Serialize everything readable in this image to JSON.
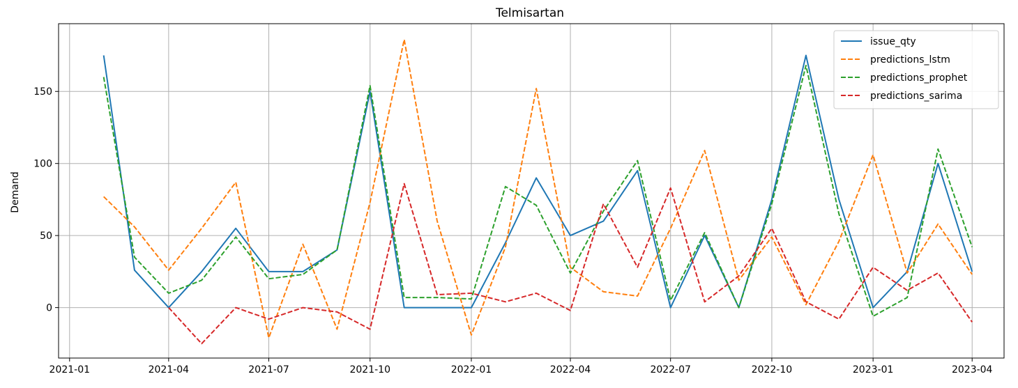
{
  "chart_data": {
    "type": "line",
    "title": "Telmisartan",
    "xlabel": "",
    "ylabel": "Demand",
    "grid": true,
    "legend_position": "top-right",
    "x_tick_labels": [
      "2021-01",
      "2021-04",
      "2021-07",
      "2021-10",
      "2022-01",
      "2022-04",
      "2022-07",
      "2022-10",
      "2023-01",
      "2023-04"
    ],
    "y_tick_labels": [
      "0",
      "50",
      "100",
      "150"
    ],
    "y_ticks": [
      0,
      50,
      100,
      150
    ],
    "x_range": [
      "2020-12-22",
      "2023-04-30"
    ],
    "y_range": [
      -35,
      197
    ],
    "x": [
      "2021-02",
      "2021-03",
      "2021-04",
      "2021-05",
      "2021-06",
      "2021-07",
      "2021-08",
      "2021-09",
      "2021-10",
      "2021-11",
      "2021-12",
      "2022-01",
      "2022-02",
      "2022-03",
      "2022-04",
      "2022-05",
      "2022-06",
      "2022-07",
      "2022-08",
      "2022-09",
      "2022-10",
      "2022-11",
      "2022-12",
      "2023-01",
      "2023-02",
      "2023-03",
      "2023-04"
    ],
    "series": [
      {
        "name": "issue_qty",
        "color": "#1f77b4",
        "style": "solid",
        "values": [
          175,
          26,
          0,
          25,
          55,
          25,
          25,
          40,
          150,
          0,
          0,
          0,
          45,
          90,
          50,
          60,
          95,
          0,
          50,
          0,
          75,
          175,
          75,
          0,
          25,
          100,
          25
        ]
      },
      {
        "name": "predictions_lstm",
        "color": "#ff7f0e",
        "style": "dashed",
        "values": [
          77,
          56,
          26,
          55,
          87,
          -21,
          44,
          -15,
          73,
          186,
          60,
          -19,
          42,
          152,
          28,
          11,
          8,
          55,
          109,
          19,
          49,
          2,
          46,
          106,
          24,
          58,
          23
        ]
      },
      {
        "name": "predictions_prophet",
        "color": "#2ca02c",
        "style": "dashed",
        "values": [
          160,
          35,
          10,
          19,
          49,
          20,
          23,
          40,
          154,
          7,
          7,
          6,
          84,
          71,
          24,
          67,
          102,
          5,
          52,
          0,
          72,
          168,
          65,
          -6,
          7,
          110,
          42
        ]
      },
      {
        "name": "predictions_sarima",
        "color": "#d62728",
        "style": "dashed",
        "values": [
          null,
          null,
          0,
          -25,
          0,
          -8,
          0,
          -3,
          -15,
          86,
          9,
          10,
          4,
          10,
          -2,
          72,
          28,
          83,
          4,
          22,
          55,
          4,
          -8,
          28,
          12,
          24,
          -10
        ]
      }
    ]
  }
}
